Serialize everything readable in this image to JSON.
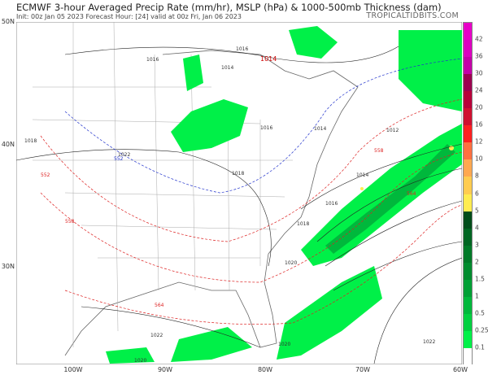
{
  "header": {
    "title": "ECMWF 3-hour Averaged Precip Rate (mm/hr), MSLP (hPa) & 1000-500mb Thickness (dam)",
    "subtitle": "Init: 00z Jan 05 2023   Forecast Hour: [24]   valid at 00z Fri, Jan 06 2023",
    "brand": "TROPICALTIDBITS.COM"
  },
  "axes": {
    "lat_labels": [
      "50N",
      "40N",
      "30N"
    ],
    "lon_labels": [
      "100W",
      "90W",
      "80W",
      "70W",
      "60W"
    ]
  },
  "map": {
    "isobar_labels": [
      "1016",
      "1018",
      "1016",
      "1014",
      "1012",
      "1014",
      "1016",
      "1018",
      "1020",
      "1022",
      "1022",
      "1020",
      "1018",
      "1020",
      "1022",
      "1014",
      "1016"
    ],
    "thickness_labels": [
      "552",
      "558",
      "564",
      "564",
      "552",
      "558"
    ],
    "low_label": "1014",
    "colors": {
      "isobar": "#000000",
      "thickness_cold": "#2233cc",
      "thickness_warm": "#dd2222",
      "precip_light": "#00f048",
      "precip_mid": "#00a035",
      "land_borders": "#888888"
    }
  },
  "colorbar": {
    "unit": "mm/hr",
    "ticks": [
      "42",
      "36",
      "30",
      "24",
      "20",
      "16",
      "12",
      "10",
      "8",
      "6",
      "5",
      "4",
      "3",
      "2",
      "1.5",
      "1",
      "0.5",
      "0.25",
      "0.1"
    ],
    "colors": [
      "#e800c8",
      "#dc00c0",
      "#c400a8",
      "#9c0050",
      "#b8003a",
      "#d01030",
      "#ff2020",
      "#ff7040",
      "#ffa850",
      "#ffcc50",
      "#ffec50",
      "#004d1a",
      "#006622",
      "#007a28",
      "#008c2e",
      "#00a035",
      "#00b83c",
      "#00d040",
      "#00f048",
      "#ffffff"
    ]
  }
}
